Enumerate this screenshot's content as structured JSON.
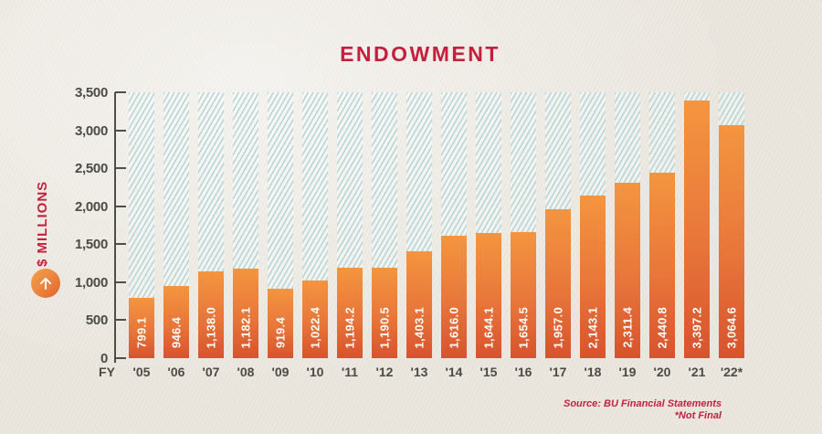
{
  "title": "ENDOWMENT",
  "y_axis": {
    "label": "$ MILLIONS",
    "ticks": [
      "3,500",
      "3,000",
      "2,500",
      "2,000",
      "1,500",
      "1,000",
      "500",
      "0"
    ]
  },
  "x_axis": {
    "prefix": "FY"
  },
  "chart_data": {
    "type": "bar",
    "title": "ENDOWMENT",
    "ylabel": "$ MILLIONS",
    "ylim": [
      0,
      3500
    ],
    "grid": false,
    "legend": "none",
    "categories": [
      "'05",
      "'06",
      "'07",
      "'08",
      "'09",
      "'10",
      "'11",
      "'12",
      "'13",
      "'14",
      "'15",
      "'16",
      "'17",
      "'18",
      "'19",
      "'20",
      "'21",
      "'22*"
    ],
    "values": [
      799.1,
      946.4,
      1138.0,
      1182.1,
      919.4,
      1022.4,
      1194.2,
      1190.5,
      1403.1,
      1616.0,
      1644.1,
      1654.5,
      1957.0,
      2143.1,
      2311.4,
      2440.8,
      3397.2,
      3064.6
    ],
    "value_labels": [
      "799.1",
      "946.4",
      "1,138.0",
      "1,182.1",
      "919.4",
      "1,022.4",
      "1,194.2",
      "1,190.5",
      "1,403.1",
      "1,616.0",
      "1,644.1",
      "1,654.5",
      "1,957.0",
      "2,143.1",
      "2,311.4",
      "2,440.8",
      "3,397.2",
      "3,064.6"
    ]
  },
  "footer": {
    "source": "Source: BU Financial Statements",
    "note": "*Not Final"
  },
  "colors": {
    "background": "#ebe7df",
    "accent_crimson": "#c41f3d",
    "bar_top": "#f4953f",
    "bar_bottom": "#d8532d",
    "hatch_stripe": "#b7d6d7",
    "axis_text": "#4a4a46",
    "value_text": "#ffffff"
  },
  "icons": {
    "up_arrow": "up-arrow-icon"
  }
}
